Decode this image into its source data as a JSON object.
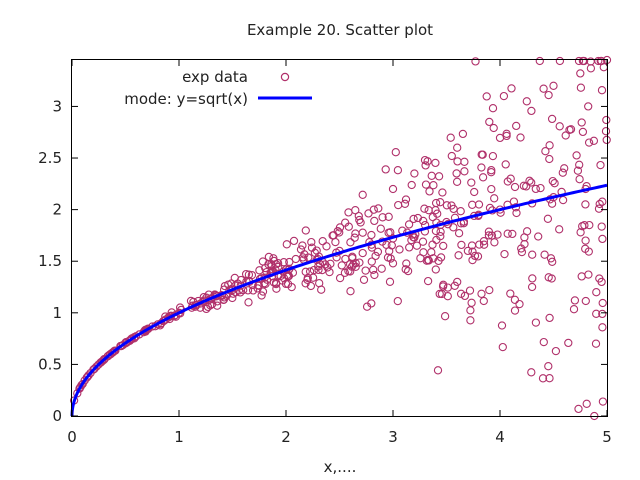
{
  "chart_data": {
    "type": "scatter",
    "title": "Example 20. Scatter plot",
    "xlabel": "x,....",
    "ylabel": "",
    "xlim": [
      0,
      5
    ],
    "ylim": [
      0,
      3.45
    ],
    "x_ticks": [
      0,
      1,
      2,
      3,
      4,
      5
    ],
    "x_tick_labels": [
      "0",
      "1",
      "2",
      "3",
      "4",
      "5"
    ],
    "y_ticks": [
      0,
      0.5,
      1,
      1.5,
      2,
      2.5,
      3
    ],
    "y_tick_labels": [
      "0",
      "0.5",
      "1",
      "1.5",
      "2",
      "2.5",
      "3"
    ],
    "grid": false,
    "legend_position": "top-left",
    "series": [
      {
        "name": "exp data",
        "kind": "scatter",
        "marker": "open-circle",
        "color": "#b0306a",
        "n_points": 600,
        "model": "y = sqrt(x) * (1 + noise), noise spread grows with x",
        "points": [
          [
            0.02,
            0.15
          ],
          [
            0.05,
            0.22
          ],
          [
            0.1,
            0.31
          ],
          [
            0.2,
            0.45
          ],
          [
            0.3,
            0.55
          ],
          [
            0.5,
            0.71
          ],
          [
            0.7,
            0.84
          ],
          [
            1.0,
            1.0
          ],
          [
            1.3,
            1.14
          ],
          [
            1.5,
            1.22
          ],
          [
            1.8,
            1.34
          ],
          [
            2.0,
            1.42
          ],
          [
            2.3,
            1.52
          ],
          [
            2.5,
            1.6
          ],
          [
            2.8,
            1.66
          ],
          [
            3.0,
            1.72
          ],
          [
            3.3,
            1.85
          ],
          [
            3.5,
            1.88
          ],
          [
            3.8,
            1.95
          ],
          [
            4.0,
            2.0
          ],
          [
            4.3,
            2.06
          ],
          [
            4.5,
            2.12
          ],
          [
            4.8,
            2.2
          ],
          [
            5.0,
            3.45
          ],
          [
            4.97,
            3.38
          ],
          [
            4.85,
            3.37
          ],
          [
            4.75,
            3.32
          ],
          [
            4.5,
            3.2
          ],
          [
            4.25,
            3.05
          ],
          [
            3.9,
            2.85
          ],
          [
            3.6,
            2.6
          ],
          [
            3.55,
            2.52
          ],
          [
            3.2,
            2.35
          ],
          [
            3.0,
            2.2
          ],
          [
            4.95,
            1.3
          ],
          [
            4.9,
            1.2
          ],
          [
            4.7,
            1.12
          ],
          [
            4.3,
            1.25
          ],
          [
            3.9,
            1.22
          ],
          [
            3.6,
            1.3
          ],
          [
            3.4,
            1.42
          ],
          [
            3.0,
            1.48
          ],
          [
            2.6,
            1.4
          ],
          [
            2.2,
            1.32
          ],
          [
            2.0,
            1.28
          ],
          [
            1.6,
            1.22
          ],
          [
            4.6,
            2.4
          ],
          [
            4.1,
            2.3
          ],
          [
            3.7,
            1.6
          ],
          [
            4.8,
            1.7
          ]
        ]
      },
      {
        "name": "mode: y=sqrt(x)",
        "kind": "line",
        "color": "#0000ff",
        "function": "sqrt(x)",
        "x_range": [
          0,
          5
        ]
      }
    ]
  }
}
